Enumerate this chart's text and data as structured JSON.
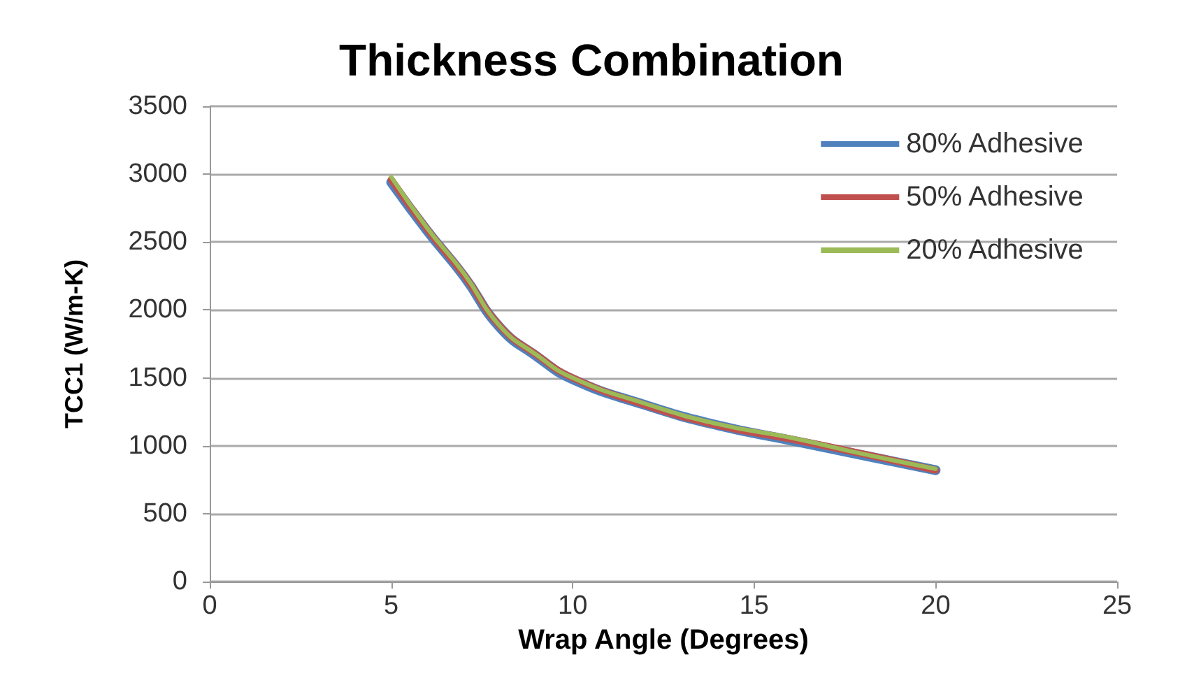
{
  "chart_data": {
    "type": "line",
    "title": "Thickness Combination",
    "xlabel": "Wrap Angle (Degrees)",
    "ylabel": "TCC1 (W/m-K)",
    "x": [
      5,
      6,
      7,
      8,
      9,
      10,
      12,
      14,
      16,
      18,
      20
    ],
    "series": [
      {
        "name": "80% Adhesive",
        "color": "#4f81bd",
        "values": [
          2940,
          2580,
          2250,
          1870,
          1660,
          1490,
          1300,
          1150,
          1040,
          930,
          820
        ]
      },
      {
        "name": "50% Adhesive",
        "color": "#c0504d",
        "values": [
          2960,
          2590,
          2260,
          1880,
          1670,
          1500,
          1300,
          1150,
          1050,
          940,
          820
        ]
      },
      {
        "name": "20% Adhesive",
        "color": "#9bbb59",
        "values": [
          2980,
          2600,
          2270,
          1880,
          1670,
          1500,
          1310,
          1160,
          1060,
          940,
          830
        ]
      }
    ],
    "xlim": [
      0,
      25
    ],
    "xticks": [
      0,
      5,
      10,
      15,
      20,
      25
    ],
    "ylim": [
      0,
      3500
    ],
    "yticks": [
      0,
      500,
      1000,
      1500,
      2000,
      2500,
      3000,
      3500
    ],
    "grid": "y",
    "legend": "top right",
    "marker": "none",
    "line_style": "solid"
  }
}
